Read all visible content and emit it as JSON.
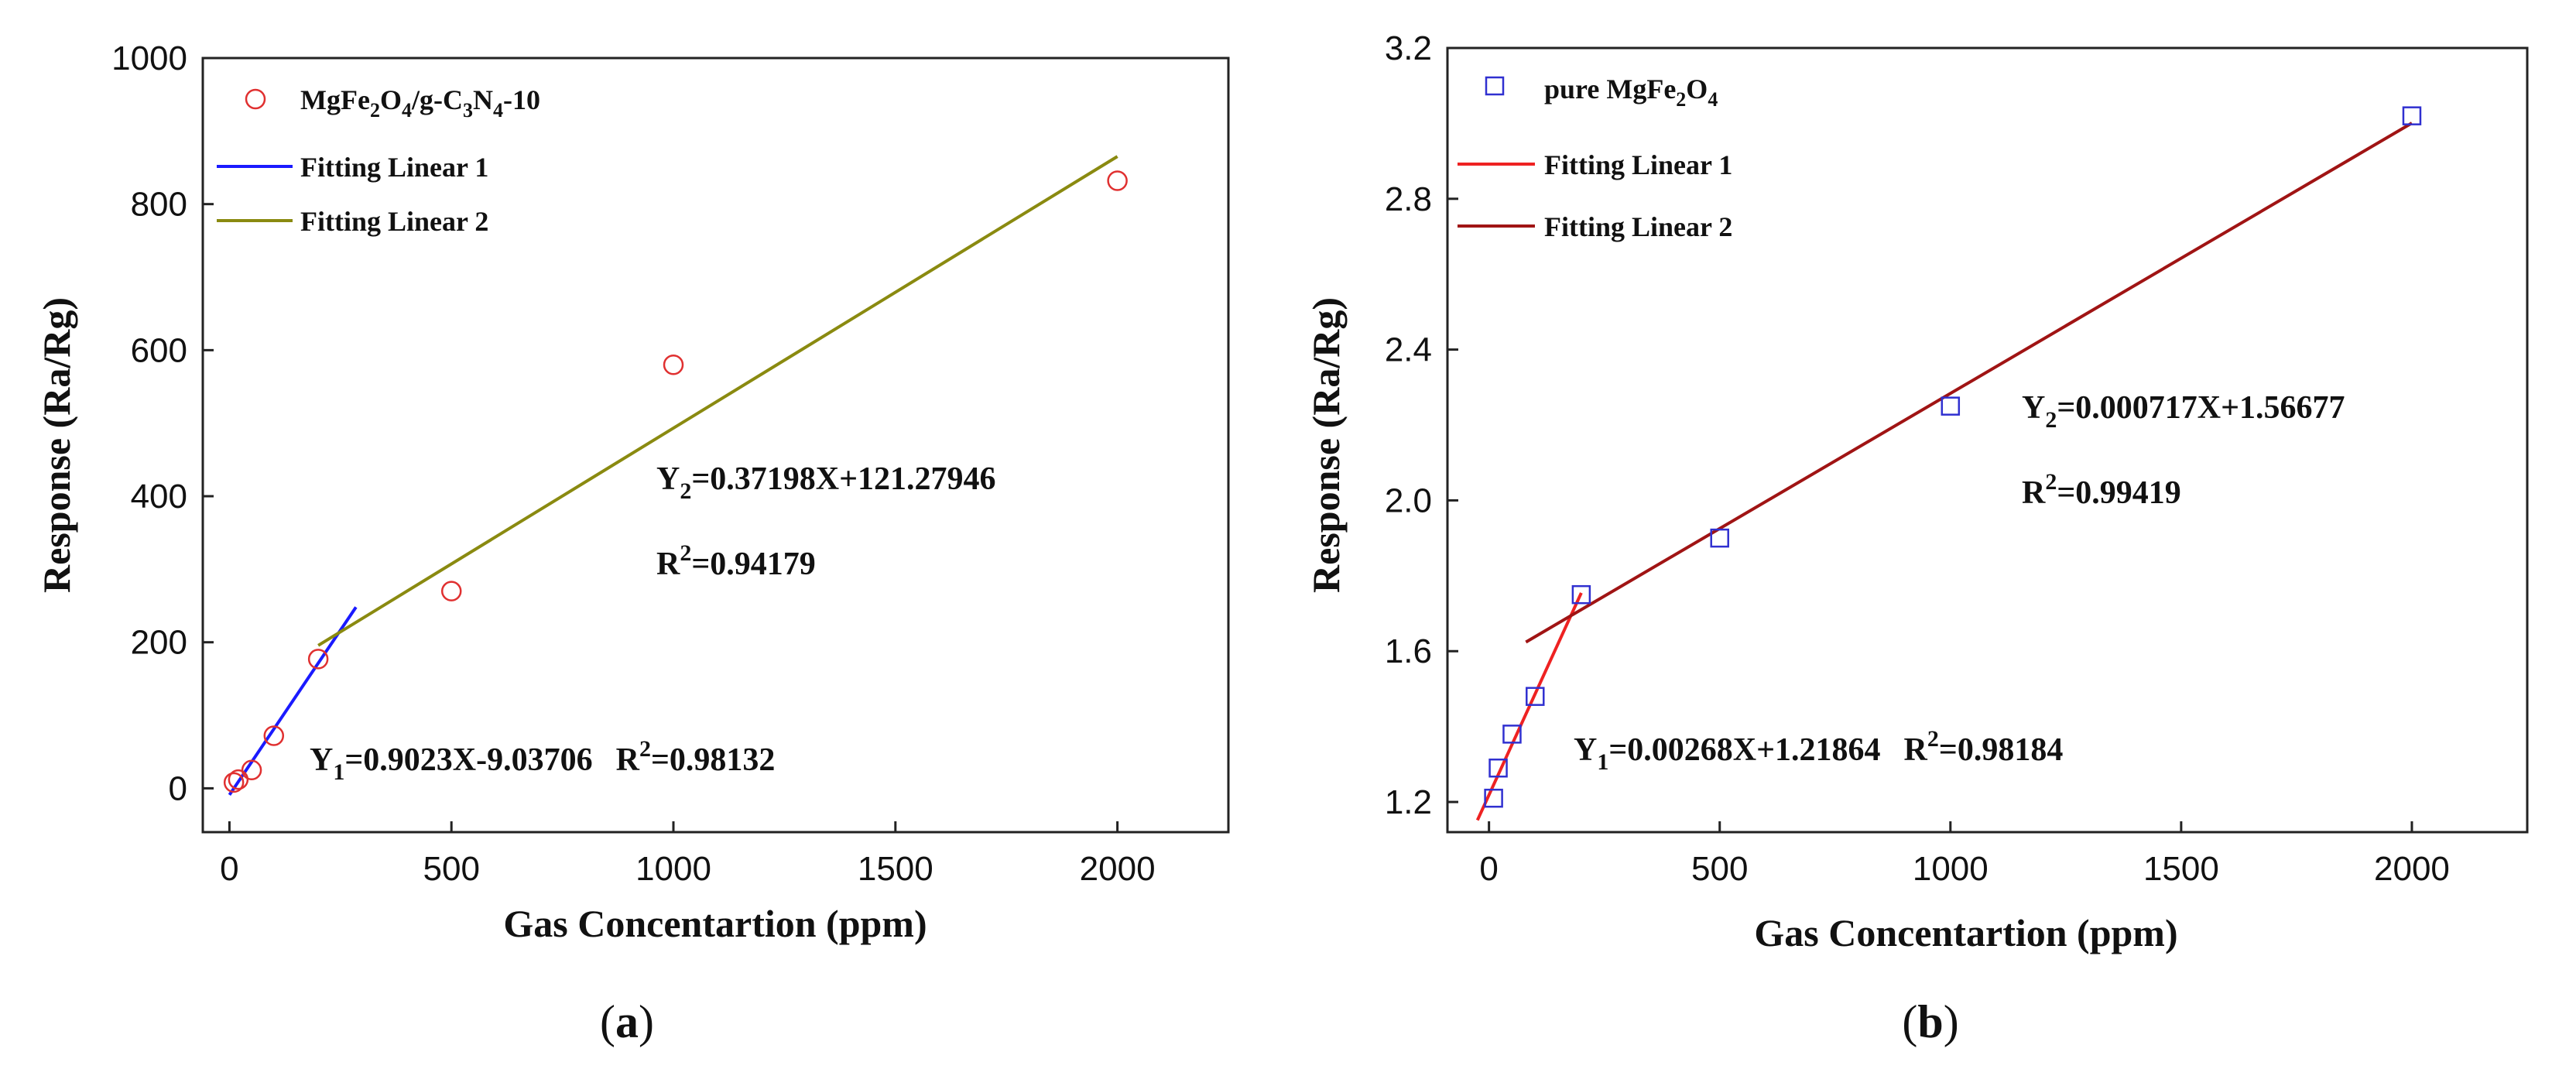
{
  "chart_data": [
    {
      "type": "scatter",
      "title": "",
      "caption": {
        "open": "(",
        "letter": "a",
        "close": ")"
      },
      "xlabel": "Gas Concentartion (ppm)",
      "ylabel": "Response (Ra/Rg)",
      "xlim": [
        -60,
        2250
      ],
      "ylim": [
        -60,
        1000
      ],
      "xticks": [
        0,
        500,
        1000,
        1500,
        2000
      ],
      "xtick_labels": [
        "0",
        "500",
        "1000",
        "1500",
        "2000"
      ],
      "yticks": [
        0,
        200,
        400,
        600,
        800,
        1000
      ],
      "ytick_labels": [
        "0",
        "200",
        "400",
        "600",
        "800",
        "1000"
      ],
      "marker": "circle",
      "marker_color": "#e03030",
      "series": [
        {
          "name": "MgFe2O4/g-C3N4-10",
          "x": [
            10,
            20,
            50,
            100,
            200,
            500,
            1000,
            2000
          ],
          "y": [
            8,
            12,
            25,
            72,
            177,
            270,
            580,
            832
          ]
        }
      ],
      "fits": [
        {
          "name": "Fitting Linear 1",
          "color": "#1a1aff",
          "slope": 0.9023,
          "intercept": -9.03706,
          "x_range": [
            0,
            285
          ]
        },
        {
          "name": "Fitting Linear 2",
          "color": "#8a8a10",
          "slope": 0.37198,
          "intercept": 121.27946,
          "x_range": [
            200,
            2000
          ]
        }
      ],
      "legend": {
        "placement": "top-left",
        "scatter_label": {
          "base": "MgFe",
          "s1": "2",
          "mid": "O",
          "s2": "4",
          "rest": "/g-C",
          "s3": "3",
          "n": "N",
          "s4": "4",
          "tail": "-10"
        },
        "fit1_label": "Fitting Linear 1",
        "fit2_label": "Fitting Linear 2"
      },
      "annotations": {
        "eq2": {
          "y": "Y",
          "sub": "2",
          "rest": "=0.37198X+121.27946"
        },
        "r2_2": {
          "r": "R",
          "sup": "2",
          "rest": "=0.94179"
        },
        "eq1": {
          "y": "Y",
          "sub": "1",
          "rest": "=0.9023X-9.03706",
          "r": "R",
          "sup": "2",
          "r_rest": "=0.98132"
        }
      }
    },
    {
      "type": "scatter",
      "title": "",
      "caption": {
        "open": "(",
        "letter": "b",
        "close": ")"
      },
      "xlabel": "Gas Concentartion (ppm)",
      "ylabel": "Response (Ra/Rg)",
      "xlim": [
        -90,
        2250
      ],
      "ylim": [
        1.12,
        3.2
      ],
      "xticks": [
        0,
        500,
        1000,
        1500,
        2000
      ],
      "xtick_labels": [
        "0",
        "500",
        "1000",
        "1500",
        "2000"
      ],
      "yticks": [
        1.2,
        1.6,
        2.0,
        2.4,
        2.8,
        3.2
      ],
      "ytick_labels": [
        "1.2",
        "1.6",
        "2.0",
        "2.4",
        "2.8",
        "3.2"
      ],
      "marker": "square",
      "marker_color": "#3030d0",
      "series": [
        {
          "name": "pure MgFe2O4",
          "x": [
            10,
            20,
            50,
            100,
            200,
            500,
            1000,
            2000
          ],
          "y": [
            1.21,
            1.29,
            1.38,
            1.48,
            1.75,
            1.9,
            2.25,
            3.02
          ]
        }
      ],
      "fits": [
        {
          "name": "Fitting Linear 1",
          "color": "#ee2222",
          "slope": 0.00268,
          "intercept": 1.21864,
          "x_range": [
            -25,
            200
          ]
        },
        {
          "name": "Fitting Linear 2",
          "color": "#a01414",
          "slope": 0.000717,
          "intercept": 1.56677,
          "x_range": [
            80,
            2000
          ]
        }
      ],
      "legend": {
        "placement": "top-left",
        "scatter_label": {
          "base": "pure MgFe",
          "s1": "2",
          "mid": "O",
          "s2": "4"
        },
        "fit1_label": "Fitting Linear 1",
        "fit2_label": "Fitting Linear 2"
      },
      "annotations": {
        "eq2": {
          "y": "Y",
          "sub": "2",
          "rest": "=0.000717X+1.56677"
        },
        "r2_2": {
          "r": "R",
          "sup": "2",
          "rest": "=0.99419"
        },
        "eq1": {
          "y": "Y",
          "sub": "1",
          "rest": "=0.00268X+1.21864",
          "r": "R",
          "sup": "2",
          "r_rest": "=0.98184"
        }
      }
    }
  ]
}
